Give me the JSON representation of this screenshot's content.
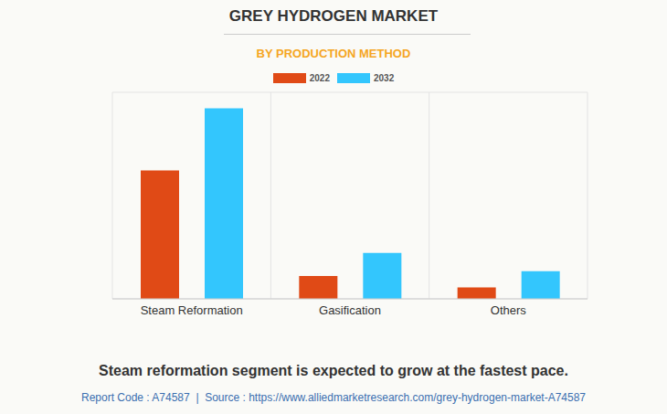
{
  "chart_data": {
    "type": "bar",
    "title": "GREY HYDROGEN MARKET",
    "subtitle": "BY PRODUCTION METHOD",
    "categories": [
      "Steam Reformation",
      "Gasification",
      "Others"
    ],
    "series": [
      {
        "name": "2022",
        "color": "#e04a16",
        "values": [
          5.6,
          1.0,
          0.5
        ]
      },
      {
        "name": "2032",
        "color": "#33c6fd",
        "values": [
          8.3,
          2.0,
          1.2
        ]
      }
    ],
    "ylim": [
      0,
      9
    ],
    "yticks": [
      0,
      1,
      2,
      3,
      4,
      5,
      6,
      7,
      8,
      9
    ],
    "grid": true,
    "tick_labels": "x",
    "legend": "top",
    "caption": "Steam reformation segment is expected to grow at the fastest pace.",
    "source": "Report Code : A74587  |  Source : https://www.alliedmarketresearch.com/grey-hydrogen-market-A74587"
  }
}
